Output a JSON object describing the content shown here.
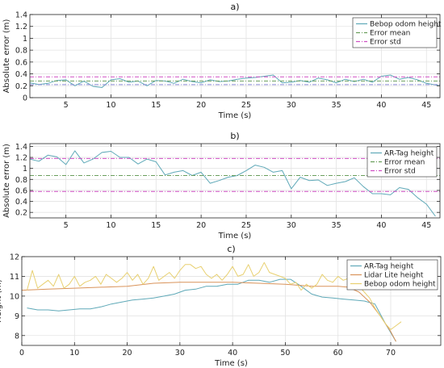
{
  "chart_data": [
    {
      "type": "line",
      "title": "a)",
      "xlabel": "Time (s)",
      "ylabel": "Absolute error (m)",
      "xlim": [
        1,
        46.5
      ],
      "ylim": [
        0,
        1.4
      ],
      "xticks": [
        5,
        10,
        15,
        20,
        25,
        30,
        35,
        40,
        45
      ],
      "yticks": [
        0,
        0.2,
        0.4,
        0.6,
        0.8,
        1,
        1.2,
        1.4
      ],
      "ytick_labels": [
        "0",
        "0.2",
        "0.4",
        "0.6",
        "0.8",
        "1",
        "1.2",
        "1.4"
      ],
      "grid": true,
      "legend_position": "top-right",
      "series": [
        {
          "name": "Bebop odom height",
          "style": "solid",
          "color": "#5fa9b8",
          "x": [
            1,
            2,
            3,
            4,
            5,
            6,
            7,
            8,
            9,
            10,
            11,
            12,
            13,
            14,
            15,
            16,
            17,
            18,
            19,
            20,
            21,
            22,
            23,
            24,
            25,
            26,
            27,
            28,
            29,
            30,
            31,
            32,
            33,
            34,
            35,
            36,
            37,
            38,
            39,
            40,
            41,
            42,
            43,
            44,
            45,
            46.5
          ],
          "y": [
            0.25,
            0.22,
            0.24,
            0.29,
            0.3,
            0.2,
            0.28,
            0.19,
            0.17,
            0.3,
            0.32,
            0.26,
            0.28,
            0.2,
            0.29,
            0.28,
            0.24,
            0.31,
            0.27,
            0.25,
            0.3,
            0.27,
            0.28,
            0.31,
            0.33,
            0.34,
            0.36,
            0.38,
            0.25,
            0.26,
            0.29,
            0.26,
            0.33,
            0.3,
            0.25,
            0.31,
            0.27,
            0.31,
            0.26,
            0.36,
            0.38,
            0.31,
            0.34,
            0.3,
            0.24,
            0.2
          ]
        },
        {
          "name": "Error mean",
          "style": "dashdot",
          "color": "#6a9e5c",
          "constant": 0.28
        },
        {
          "name": "Error std",
          "style": "dashdot",
          "color": "#d04fc4",
          "constant": 0.35
        },
        {
          "name": "",
          "style": "dashdot",
          "color": "#8a8ad8",
          "constant": 0.22
        }
      ]
    },
    {
      "type": "line",
      "title": "b)",
      "xlabel": "Time (s)",
      "ylabel": "Absolute error (m)",
      "xlim": [
        1,
        46.5
      ],
      "ylim": [
        0.1,
        1.45
      ],
      "xticks": [
        5,
        10,
        15,
        20,
        25,
        30,
        35,
        40,
        45
      ],
      "yticks": [
        0.2,
        0.4,
        0.6,
        0.8,
        1,
        1.2,
        1.4
      ],
      "ytick_labels": [
        "0.2",
        "0.4",
        "0.6",
        "0.8",
        "1",
        "1.2",
        "1.4"
      ],
      "grid": true,
      "legend_position": "top-right",
      "series": [
        {
          "name": "AR-Tag height",
          "style": "solid",
          "color": "#5fa9b8",
          "x": [
            1,
            2,
            3,
            4,
            5,
            6,
            7,
            8,
            9,
            10,
            11,
            12,
            13,
            14,
            15,
            16,
            17,
            18,
            19,
            20,
            21,
            22,
            23,
            24,
            25,
            26,
            27,
            28,
            29,
            30,
            31,
            32,
            33,
            34,
            35,
            36,
            37,
            38,
            39,
            40,
            41,
            42,
            43,
            44,
            45,
            46
          ],
          "y": [
            1.17,
            1.13,
            1.24,
            1.21,
            1.07,
            1.32,
            1.1,
            1.17,
            1.29,
            1.31,
            1.2,
            1.2,
            1.08,
            1.17,
            1.12,
            0.88,
            0.93,
            0.96,
            0.87,
            0.93,
            0.73,
            0.78,
            0.84,
            0.87,
            0.96,
            1.06,
            1.02,
            0.93,
            0.96,
            0.63,
            0.84,
            0.78,
            0.79,
            0.69,
            0.73,
            0.76,
            0.83,
            0.67,
            0.54,
            0.54,
            0.52,
            0.65,
            0.62,
            0.47,
            0.35,
            0.13
          ]
        },
        {
          "name": "Error mean",
          "style": "dashdot",
          "color": "#6a9e5c",
          "constant": 0.87
        },
        {
          "name": "Error std",
          "style": "dashdot",
          "color": "#d04fc4",
          "constant": 1.18
        },
        {
          "name": "",
          "style": "dashdot",
          "color": "#d04fc4",
          "constant": 0.58
        }
      ]
    },
    {
      "type": "line",
      "title": "c)",
      "xlabel": "Time (s)",
      "ylabel": "Height (m)",
      "xlim": [
        0,
        79.5
      ],
      "ylim": [
        7.5,
        12
      ],
      "xticks": [
        0,
        10,
        20,
        30,
        40,
        50,
        60,
        70
      ],
      "yticks": [
        8,
        9,
        10,
        11,
        12
      ],
      "ytick_labels": [
        "8",
        "9",
        "10",
        "11",
        "12"
      ],
      "grid": true,
      "legend_position": "top-right",
      "series": [
        {
          "name": "AR-Tag height",
          "style": "solid",
          "color": "#5fa9b8",
          "x": [
            1,
            3,
            5,
            7,
            9,
            11,
            13,
            15,
            17,
            19,
            21,
            23,
            25,
            27,
            29,
            31,
            33,
            35,
            37,
            39,
            41,
            43,
            45,
            47,
            49,
            51,
            53,
            55,
            57,
            59,
            61,
            63,
            65,
            67,
            69,
            71
          ],
          "y": [
            9.4,
            9.3,
            9.3,
            9.25,
            9.3,
            9.35,
            9.35,
            9.45,
            9.6,
            9.7,
            9.8,
            9.85,
            9.9,
            10.0,
            10.1,
            10.3,
            10.35,
            10.5,
            10.5,
            10.6,
            10.6,
            10.8,
            10.8,
            10.7,
            10.85,
            10.85,
            10.5,
            10.1,
            9.95,
            9.9,
            9.85,
            9.8,
            9.75,
            9.6,
            8.6,
            7.7
          ]
        },
        {
          "name": "Lidar Lite height",
          "style": "solid",
          "color": "#d9935a",
          "x": [
            0,
            5,
            10,
            15,
            20,
            25,
            30,
            35,
            40,
            45,
            50,
            55,
            60,
            62,
            64,
            66,
            68,
            70,
            71
          ],
          "y": [
            10.3,
            10.35,
            10.4,
            10.45,
            10.5,
            10.65,
            10.7,
            10.7,
            10.7,
            10.65,
            10.6,
            10.5,
            10.5,
            10.45,
            10.2,
            9.7,
            9.0,
            8.2,
            7.7
          ]
        },
        {
          "name": "Bebop odom height",
          "style": "solid",
          "color": "#e8d070",
          "x": [
            1,
            2,
            3,
            4,
            5,
            6,
            7,
            8,
            9,
            10,
            11,
            12,
            13,
            14,
            15,
            16,
            17,
            18,
            19,
            20,
            21,
            22,
            23,
            24,
            25,
            26,
            27,
            28,
            29,
            30,
            31,
            32,
            33,
            34,
            35,
            36,
            37,
            38,
            39,
            40,
            41,
            42,
            43,
            44,
            45,
            46,
            47,
            48,
            49,
            50,
            51,
            52,
            53,
            54,
            55,
            56,
            57,
            58,
            59,
            60,
            61,
            62,
            63,
            64,
            65,
            66,
            67,
            68,
            69,
            70,
            71,
            72
          ],
          "y": [
            10.3,
            11.3,
            10.4,
            10.6,
            10.8,
            10.5,
            11.1,
            10.4,
            10.6,
            11.0,
            10.5,
            10.7,
            10.8,
            11.0,
            10.6,
            11.1,
            10.9,
            10.7,
            10.9,
            11.2,
            10.8,
            11.1,
            10.6,
            10.9,
            11.5,
            10.8,
            11.0,
            11.2,
            10.9,
            11.3,
            11.6,
            11.6,
            11.4,
            11.5,
            11.1,
            10.9,
            11.1,
            10.8,
            11.1,
            11.5,
            11.0,
            11.1,
            11.6,
            11.0,
            11.2,
            11.7,
            11.2,
            11.1,
            11.0,
            10.9,
            10.6,
            10.7,
            10.3,
            10.6,
            10.4,
            10.6,
            11.1,
            10.8,
            10.7,
            11.0,
            10.8,
            10.9,
            10.7,
            10.5,
            10.2,
            9.9,
            9.4,
            9.0,
            8.6,
            8.3,
            8.5,
            8.7
          ]
        }
      ]
    }
  ]
}
